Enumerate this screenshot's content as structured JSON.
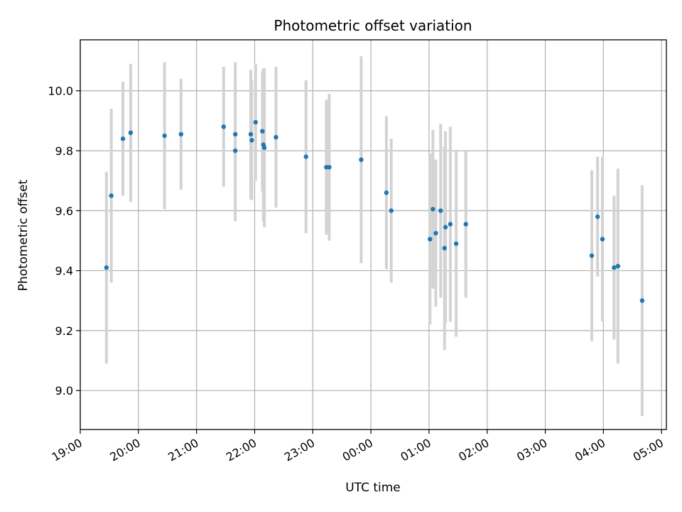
{
  "chart_data": {
    "type": "scatter",
    "title": "Photometric offset variation",
    "xlabel": "UTC time",
    "ylabel": "Photometric offset",
    "x_unit": "UTC time on a night spanning midnight; values before 19:00-24:00 are evening, 00:00-05:00 are after midnight",
    "xlim": [
      "19:00",
      "05:05"
    ],
    "ylim": [
      8.87,
      10.17
    ],
    "grid": true,
    "x_ticks": [
      "19:00",
      "20:00",
      "21:00",
      "22:00",
      "23:00",
      "00:00",
      "01:00",
      "02:00",
      "03:00",
      "04:00",
      "05:00"
    ],
    "y_ticks": [
      "9.0",
      "9.2",
      "9.4",
      "9.6",
      "9.8",
      "10.0"
    ],
    "colors": {
      "point": "#1f77b4",
      "errorbar": "#d3d3d3",
      "grid": "#b0b0b0"
    },
    "points": [
      {
        "x": "19:27",
        "y": 9.41,
        "err": 0.32
      },
      {
        "x": "19:32",
        "y": 9.65,
        "err": 0.29
      },
      {
        "x": "19:44",
        "y": 9.84,
        "err": 0.19
      },
      {
        "x": "19:52",
        "y": 9.86,
        "err": 0.23
      },
      {
        "x": "20:27",
        "y": 9.85,
        "err": 0.245
      },
      {
        "x": "20:44",
        "y": 9.855,
        "err": 0.185
      },
      {
        "x": "21:28",
        "y": 9.88,
        "err": 0.2
      },
      {
        "x": "21:40",
        "y": 9.855,
        "err": 0.24
      },
      {
        "x": "21:40",
        "y": 9.8,
        "err": 0.235
      },
      {
        "x": "21:56",
        "y": 9.855,
        "err": 0.215
      },
      {
        "x": "21:57",
        "y": 9.835,
        "err": 0.2
      },
      {
        "x": "22:01",
        "y": 9.895,
        "err": 0.195
      },
      {
        "x": "22:08",
        "y": 9.865,
        "err": 0.2
      },
      {
        "x": "22:09",
        "y": 9.82,
        "err": 0.255
      },
      {
        "x": "22:10",
        "y": 9.81,
        "err": 0.265
      },
      {
        "x": "22:22",
        "y": 9.845,
        "err": 0.235
      },
      {
        "x": "22:53",
        "y": 9.78,
        "err": 0.255
      },
      {
        "x": "23:14",
        "y": 9.745,
        "err": 0.225
      },
      {
        "x": "23:17",
        "y": 9.745,
        "err": 0.245
      },
      {
        "x": "23:50",
        "y": 9.77,
        "err": 0.345
      },
      {
        "x": "00:16",
        "y": 9.66,
        "err": 0.255
      },
      {
        "x": "00:21",
        "y": 9.6,
        "err": 0.24
      },
      {
        "x": "01:01",
        "y": 9.505,
        "err": 0.285
      },
      {
        "x": "01:04",
        "y": 9.605,
        "err": 0.265
      },
      {
        "x": "01:07",
        "y": 9.525,
        "err": 0.245
      },
      {
        "x": "01:12",
        "y": 9.6,
        "err": 0.29
      },
      {
        "x": "01:16",
        "y": 9.475,
        "err": 0.34
      },
      {
        "x": "01:17",
        "y": 9.545,
        "err": 0.32
      },
      {
        "x": "01:22",
        "y": 9.555,
        "err": 0.325
      },
      {
        "x": "01:28",
        "y": 9.49,
        "err": 0.31
      },
      {
        "x": "01:38",
        "y": 9.555,
        "err": 0.245
      },
      {
        "x": "03:48",
        "y": 9.45,
        "err": 0.285
      },
      {
        "x": "03:54",
        "y": 9.58,
        "err": 0.2
      },
      {
        "x": "03:59",
        "y": 9.505,
        "err": 0.275
      },
      {
        "x": "04:11",
        "y": 9.41,
        "err": 0.24
      },
      {
        "x": "04:15",
        "y": 9.415,
        "err": 0.325
      },
      {
        "x": "04:40",
        "y": 9.3,
        "err": 0.385
      }
    ]
  }
}
